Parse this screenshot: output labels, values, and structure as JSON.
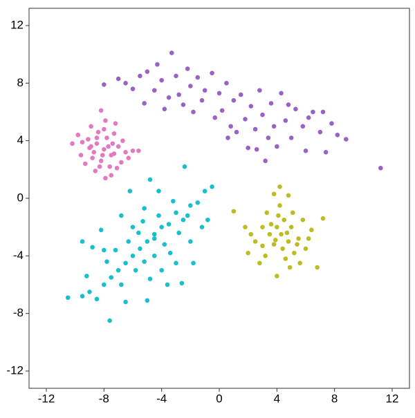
{
  "chart_data": {
    "type": "scatter",
    "xlim": [
      -13.2,
      13.2
    ],
    "ylim": [
      -13.2,
      13.2
    ],
    "xticks": [
      -12,
      -8,
      -4,
      0,
      4,
      8,
      12
    ],
    "yticks": [
      -12,
      -8,
      -4,
      0,
      4,
      8,
      12
    ],
    "grid": false,
    "series": [
      {
        "color": "#9a62c5",
        "x": [
          -8,
          -7,
          -6.5,
          -6,
          -5.5,
          -5,
          -4.5,
          -4.3,
          -4,
          -3.5,
          -3.3,
          -3,
          -2.8,
          -2.5,
          -2.2,
          -2,
          -1.8,
          -1.5,
          -1.2,
          -1,
          -0.5,
          -0.3,
          0,
          0.2,
          0.5,
          0.8,
          1,
          1.2,
          1.5,
          1.8,
          2,
          2.2,
          2.5,
          2.8,
          3,
          3.2,
          3.4,
          3.6,
          3.8,
          4,
          4.3,
          4.6,
          5,
          5.3,
          5.8,
          6,
          6.5,
          7,
          7.4,
          7.8,
          8.2,
          8.8,
          11.2,
          -5.2,
          -3.8,
          0.6,
          2.6,
          4.8,
          6.2,
          7.2
        ],
        "values": [
          7.9,
          8.3,
          8,
          7.6,
          8.5,
          8.8,
          7.5,
          9.3,
          8.2,
          7,
          10.1,
          8.5,
          7.2,
          6.5,
          9,
          7.8,
          6,
          8.4,
          6.8,
          7.5,
          8.7,
          5.6,
          7.3,
          6.1,
          8,
          5,
          6.8,
          4.6,
          7.2,
          5.5,
          3.5,
          6.4,
          4.8,
          7.5,
          5.8,
          2.6,
          4.2,
          6.6,
          5,
          3.6,
          7.3,
          5.4,
          4.2,
          6.2,
          5,
          3.3,
          6,
          4.6,
          3.2,
          5.2,
          4.4,
          4.1,
          2.1,
          6.6,
          6.2,
          4.2,
          3.4,
          6.5,
          5.6,
          6
        ]
      },
      {
        "color": "#e479c3",
        "x": [
          -8,
          -8.5,
          -7.5,
          -8.2,
          -7.8,
          -9,
          -7,
          -8.8,
          -7.3,
          -8.4,
          -9.5,
          -6.5,
          -7.6,
          -8.6,
          -7.9,
          -10.2,
          -9.8,
          -6,
          -5.6,
          -8.2,
          -7.2,
          -8.9,
          -9.3,
          -6.8,
          -7.4,
          -8.1,
          -7.7,
          -8.7,
          -9.1,
          -6.7,
          -7.9,
          -8.3,
          -7.1,
          -9.6,
          -8,
          -6.3,
          -7.5,
          -8.5,
          -7.3,
          -8.9
        ],
        "values": [
          3.4,
          3.8,
          3,
          2.6,
          4.2,
          3.5,
          3.6,
          2.8,
          4.5,
          4.6,
          3.9,
          3.2,
          2.2,
          1.9,
          1.4,
          3.8,
          4.4,
          3.3,
          3.3,
          6.1,
          5.2,
          5,
          2.4,
          2.5,
          3.8,
          3,
          3.6,
          3.2,
          4.1,
          4,
          5.4,
          2.2,
          2.1,
          3,
          4.8,
          2.8,
          1.6,
          4.2,
          3.1,
          3.6
        ]
      },
      {
        "color": "#1abfcd",
        "x": [
          -5,
          -4.5,
          -5.5,
          -6,
          -4,
          -3.5,
          -3,
          -2.5,
          -2,
          -1.5,
          -1,
          -0.5,
          -6.5,
          -7,
          -7.5,
          -8,
          -9,
          -9.5,
          -10.5,
          -7.6,
          -4,
          -3,
          -2,
          -1.8,
          -2.6,
          -5,
          -6.5,
          -8.5,
          -8,
          -9.5,
          -8.2,
          -6.8,
          -5.2,
          -4.8,
          -4.2,
          -2.4,
          -3.2,
          -6,
          -6.3,
          -4.5,
          -3.8,
          -5.8,
          -7.2,
          -2.8,
          -4.2,
          -5.6,
          -6.8,
          -4.8,
          -3.4,
          -1.2,
          -7.8,
          -9.2,
          -5.3,
          -4.5,
          -3.6,
          -6.2,
          -8.8,
          -2.2,
          -0.8,
          -5.2
        ],
        "values": [
          -3,
          -2.5,
          -3.5,
          -4,
          -2,
          -1.8,
          -1,
          -1.5,
          -0.5,
          -0.3,
          0.5,
          0.8,
          -4.5,
          -5,
          -5.5,
          -6,
          -6.5,
          -6.8,
          -6.9,
          -8.5,
          -5,
          -4.5,
          -3,
          -4.5,
          -5.9,
          -7.1,
          -7.2,
          -7,
          -3.6,
          -3,
          -2.2,
          -1.2,
          -0.7,
          1.3,
          0.5,
          2.2,
          -0.2,
          -2,
          -3,
          -4,
          -3.2,
          -5,
          -3.6,
          -2.4,
          -1.2,
          -2.4,
          -6,
          -5.6,
          -3.8,
          -2,
          -4.4,
          -5.4,
          -1.6,
          -2.8,
          -6,
          0.5,
          -3.4,
          -1.2,
          -1.5,
          -4.4
        ]
      },
      {
        "color": "#bcbd22",
        "x": [
          4.3,
          4,
          4.8,
          3.5,
          5,
          4.5,
          3.8,
          5.5,
          4.2,
          3,
          2.5,
          5.8,
          6,
          3.2,
          4.6,
          4,
          6.8,
          7.2,
          1,
          1.8,
          2,
          4.2,
          3.8,
          4.8,
          6.4,
          5.2,
          3.3,
          2.8,
          5.6,
          4.4,
          3.6,
          5.1,
          2.2,
          6.2,
          4.7,
          3.9,
          5.4,
          3,
          4.1,
          4.9
        ],
        "values": [
          -2.5,
          -2,
          -3,
          -2.5,
          -2,
          -1.5,
          -3.2,
          -2.8,
          -0.5,
          -2,
          -3,
          -1.5,
          -3.5,
          -4,
          -4.2,
          -5.4,
          -4.8,
          -1.4,
          -0.9,
          -2,
          -3.8,
          0.8,
          0.3,
          0.2,
          -2.2,
          -3.8,
          -1,
          -4.5,
          -4.5,
          -3.5,
          -1.8,
          -1,
          -2.5,
          -2.8,
          -2.4,
          -2.9,
          -3.2,
          -3.3,
          -1.2,
          -4.8
        ]
      }
    ]
  }
}
